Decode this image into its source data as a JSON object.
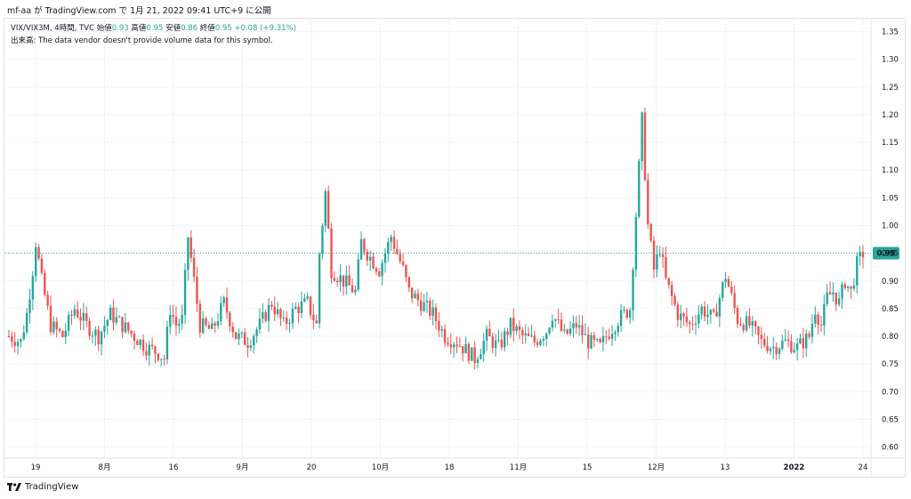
{
  "header": {
    "publish_line": "mf-aa が TradingView.com で 1月 21, 2022 09:41 UTC+9 に公開"
  },
  "legend": {
    "symbol": "VIX/VIX3M, 4時間, TVC",
    "open_label": "始値",
    "open": "0.93",
    "high_label": "高値",
    "high": "0.95",
    "low_label": "安値",
    "low": "0.86",
    "close_label": "終値",
    "close": "0.95",
    "change": "+0.08 (+9.31%)",
    "volume_note": "出来高: The data vendor doesn't provide volume data for this symbol."
  },
  "brand": {
    "name": "TradingView"
  },
  "colors": {
    "up": "#26a69a",
    "down": "#ef5350",
    "grid": "#f0f3fa",
    "price_line": "#26a69a"
  },
  "chart_data": {
    "type": "candlestick",
    "symbol": "VIX/VIX3M",
    "timeframe": "4時間",
    "ylim": [
      0.58,
      1.375
    ],
    "y_ticks": [
      "1.35",
      "1.30",
      "1.25",
      "1.20",
      "1.15",
      "1.10",
      "1.05",
      "1.00",
      "0.95",
      "0.90",
      "0.85",
      "0.80",
      "0.75",
      "0.70",
      "0.65",
      "0.60"
    ],
    "x_ticks": [
      {
        "label": "19",
        "bold": false
      },
      {
        "label": "8月",
        "bold": false
      },
      {
        "label": "16",
        "bold": false
      },
      {
        "label": "9月",
        "bold": false
      },
      {
        "label": "20",
        "bold": false
      },
      {
        "label": "10月",
        "bold": false
      },
      {
        "label": "18",
        "bold": false
      },
      {
        "label": "11月",
        "bold": false
      },
      {
        "label": "15",
        "bold": false
      },
      {
        "label": "12月",
        "bold": false
      },
      {
        "label": "13",
        "bold": false
      },
      {
        "label": "2022",
        "bold": true
      },
      {
        "label": "24",
        "bold": false
      }
    ],
    "last_price": "0.95",
    "price_path": [
      [
        0,
        0.8
      ],
      [
        4,
        0.79
      ],
      [
        6,
        0.84
      ],
      [
        8,
        0.92
      ],
      [
        9,
        0.97
      ],
      [
        11,
        0.9
      ],
      [
        14,
        0.82
      ],
      [
        18,
        0.8
      ],
      [
        22,
        0.85
      ],
      [
        26,
        0.82
      ],
      [
        30,
        0.8
      ],
      [
        34,
        0.84
      ],
      [
        38,
        0.82
      ],
      [
        42,
        0.8
      ],
      [
        46,
        0.78
      ],
      [
        50,
        0.77
      ],
      [
        52,
        0.76
      ],
      [
        54,
        0.85
      ],
      [
        56,
        0.82
      ],
      [
        58,
        0.83
      ],
      [
        60,
        0.98
      ],
      [
        62,
        0.9
      ],
      [
        64,
        0.82
      ],
      [
        68,
        0.81
      ],
      [
        72,
        0.86
      ],
      [
        76,
        0.8
      ],
      [
        80,
        0.79
      ],
      [
        84,
        0.82
      ],
      [
        88,
        0.86
      ],
      [
        92,
        0.82
      ],
      [
        96,
        0.85
      ],
      [
        100,
        0.86
      ],
      [
        103,
        0.82
      ],
      [
        104,
        0.95
      ],
      [
        106,
        1.06
      ],
      [
        108,
        0.92
      ],
      [
        112,
        0.9
      ],
      [
        116,
        0.88
      ],
      [
        118,
        0.97
      ],
      [
        120,
        0.95
      ],
      [
        124,
        0.92
      ],
      [
        128,
        0.98
      ],
      [
        130,
        0.95
      ],
      [
        132,
        0.92
      ],
      [
        134,
        0.88
      ],
      [
        138,
        0.86
      ],
      [
        142,
        0.84
      ],
      [
        146,
        0.8
      ],
      [
        150,
        0.79
      ],
      [
        154,
        0.77
      ],
      [
        156,
        0.76
      ],
      [
        160,
        0.8
      ],
      [
        164,
        0.78
      ],
      [
        168,
        0.82
      ],
      [
        172,
        0.8
      ],
      [
        176,
        0.79
      ],
      [
        180,
        0.81
      ],
      [
        182,
        0.84
      ],
      [
        186,
        0.8
      ],
      [
        190,
        0.82
      ],
      [
        194,
        0.79
      ],
      [
        198,
        0.78
      ],
      [
        200,
        0.8
      ],
      [
        204,
        0.83
      ],
      [
        208,
        0.85
      ],
      [
        212,
        1.19
      ],
      [
        214,
        1.0
      ],
      [
        216,
        0.92
      ],
      [
        218,
        0.96
      ],
      [
        220,
        0.9
      ],
      [
        222,
        0.87
      ],
      [
        224,
        0.84
      ],
      [
        228,
        0.82
      ],
      [
        232,
        0.85
      ],
      [
        236,
        0.83
      ],
      [
        240,
        0.91
      ],
      [
        244,
        0.83
      ],
      [
        248,
        0.82
      ],
      [
        252,
        0.79
      ],
      [
        256,
        0.78
      ],
      [
        260,
        0.79
      ],
      [
        264,
        0.78
      ],
      [
        268,
        0.8
      ],
      [
        270,
        0.85
      ],
      [
        272,
        0.82
      ],
      [
        274,
        0.87
      ],
      [
        276,
        0.88
      ],
      [
        278,
        0.86
      ],
      [
        280,
        0.9
      ],
      [
        282,
        0.88
      ],
      [
        284,
        0.93
      ],
      [
        286,
        0.95
      ]
    ]
  }
}
